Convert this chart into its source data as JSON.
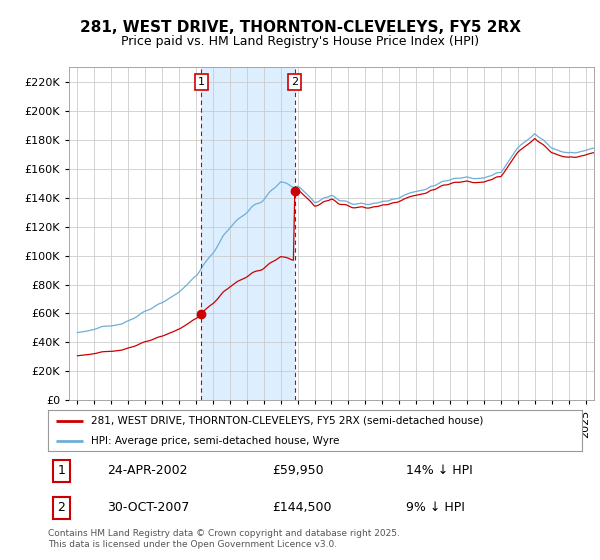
{
  "title": "281, WEST DRIVE, THORNTON-CLEVELEYS, FY5 2RX",
  "subtitle": "Price paid vs. HM Land Registry's House Price Index (HPI)",
  "legend_line1": "281, WEST DRIVE, THORNTON-CLEVELEYS, FY5 2RX (semi-detached house)",
  "legend_line2": "HPI: Average price, semi-detached house, Wyre",
  "footnote": "Contains HM Land Registry data © Crown copyright and database right 2025.\nThis data is licensed under the Open Government Licence v3.0.",
  "sale1_label": "1",
  "sale1_date": "24-APR-2002",
  "sale1_price": "£59,950",
  "sale1_hpi": "14% ↓ HPI",
  "sale2_label": "2",
  "sale2_date": "30-OCT-2007",
  "sale2_price": "£144,500",
  "sale2_hpi": "9% ↓ HPI",
  "sale1_x": 2002.31,
  "sale1_y": 59950,
  "sale2_x": 2007.83,
  "sale2_y": 144500,
  "vline1_x": 2002.31,
  "vline2_x": 2007.83,
  "hpi_color": "#6dafd6",
  "price_color": "#cc0000",
  "vline_color": "#cc0000",
  "shade_color": "#ddeeff",
  "plot_bg": "#ffffff",
  "grid_color": "#cccccc",
  "ylim": [
    0,
    230000
  ],
  "ytick_step": 20000,
  "xlim": [
    1994.5,
    2025.5
  ],
  "title_fontsize": 11,
  "subtitle_fontsize": 9,
  "tick_fontsize": 8
}
